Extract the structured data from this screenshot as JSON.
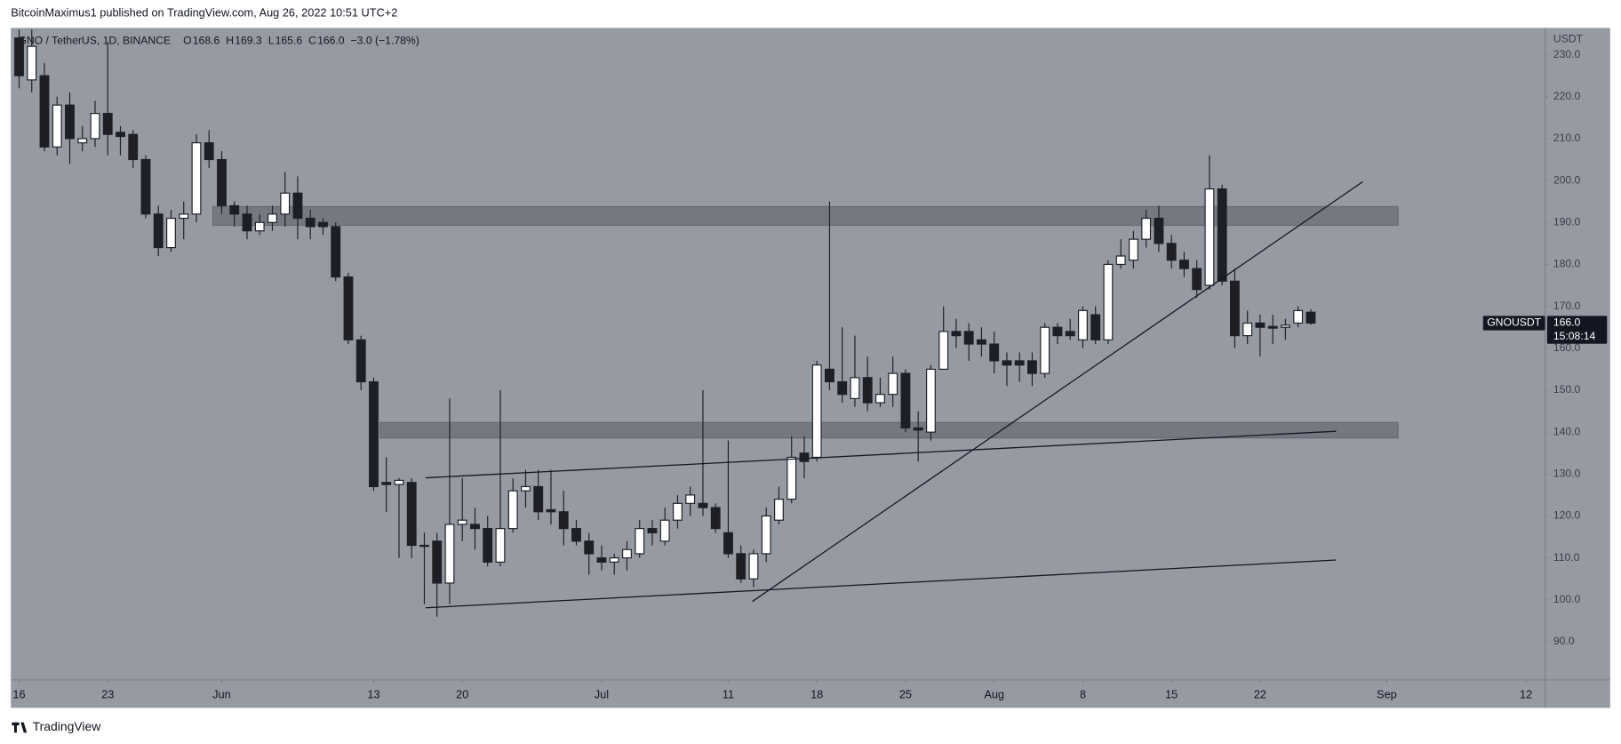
{
  "publisher": "BitcoinMaximus1 published on TradingView.com, Aug 26, 2022 10:51 UTC+2",
  "brand": "TradingView",
  "chart_data": {
    "type": "candlestick",
    "legend": {
      "symbol": "GNO / TetherUS, 1D, BINANCE",
      "o_label": "O",
      "o": "168.6",
      "h_label": "H",
      "h": "169.3",
      "l_label": "L",
      "l": "165.6",
      "c_label": "C",
      "c": "166.0",
      "change": "−3.0 (−1.78%)"
    },
    "y_axis_label": "USDT",
    "last_label": {
      "symbol": "GNOUSDT",
      "price": "166.0",
      "countdown": "15:08:14"
    },
    "up_color": "#ffffff",
    "down_color": "#1e1f25",
    "background": "#959aa3",
    "categories": [
      "May 16",
      "May 17",
      "May 18",
      "May 19",
      "May 20",
      "May 21",
      "May 22",
      "May 23",
      "May 24",
      "May 25",
      "May 26",
      "May 27",
      "May 28",
      "May 29",
      "May 30",
      "May 31",
      "Jun 1",
      "Jun 2",
      "Jun 3",
      "Jun 4",
      "Jun 5",
      "Jun 6",
      "Jun 7",
      "Jun 8",
      "Jun 9",
      "Jun 10",
      "Jun 11",
      "Jun 12",
      "Jun 13",
      "Jun 14",
      "Jun 15",
      "Jun 16",
      "Jun 17",
      "Jun 18",
      "Jun 19",
      "Jun 20",
      "Jun 21",
      "Jun 22",
      "Jun 23",
      "Jun 24",
      "Jun 25",
      "Jun 26",
      "Jun 27",
      "Jun 28",
      "Jun 29",
      "Jun 30",
      "Jul 1",
      "Jul 2",
      "Jul 3",
      "Jul 4",
      "Jul 5",
      "Jul 6",
      "Jul 7",
      "Jul 8",
      "Jul 9",
      "Jul 10",
      "Jul 11",
      "Jul 12",
      "Jul 13",
      "Jul 14",
      "Jul 15",
      "Jul 16",
      "Jul 17",
      "Jul 18",
      "Jul 19",
      "Jul 20",
      "Jul 21",
      "Jul 22",
      "Jul 23",
      "Jul 24",
      "Jul 25",
      "Jul 26",
      "Jul 27",
      "Jul 28",
      "Jul 29",
      "Jul 30",
      "Jul 31",
      "Aug 1",
      "Aug 2",
      "Aug 3",
      "Aug 4",
      "Aug 5",
      "Aug 6",
      "Aug 7",
      "Aug 8",
      "Aug 9",
      "Aug 10",
      "Aug 11",
      "Aug 12",
      "Aug 13",
      "Aug 14",
      "Aug 15",
      "Aug 16",
      "Aug 17",
      "Aug 18",
      "Aug 19",
      "Aug 20",
      "Aug 21",
      "Aug 22",
      "Aug 23",
      "Aug 24",
      "Aug 25",
      "Aug 26"
    ],
    "open": [
      234,
      224,
      225,
      208,
      218,
      209,
      210,
      216,
      211.5,
      211,
      205,
      192,
      184,
      191,
      192,
      209,
      205,
      194,
      192,
      188,
      190,
      192,
      197,
      191,
      190,
      189,
      177,
      162,
      152,
      128,
      127.5,
      128,
      113,
      114,
      104,
      118,
      118,
      117,
      109,
      117,
      126,
      127,
      121.5,
      121,
      117,
      114,
      110,
      109,
      110,
      111,
      117,
      114,
      119,
      123,
      123,
      122,
      116,
      111,
      105,
      111,
      119,
      124,
      135,
      134,
      155,
      152,
      148,
      153,
      147,
      149,
      154,
      141,
      140,
      155,
      164,
      164,
      162,
      161,
      157,
      157,
      157,
      154,
      165,
      164,
      162,
      168,
      162,
      180,
      181,
      186,
      191,
      185,
      181,
      179,
      175,
      198,
      176,
      163,
      166,
      165.2,
      165,
      166,
      168.6
    ],
    "high": [
      236,
      236,
      228,
      220,
      221,
      213,
      219,
      233,
      213,
      212,
      206,
      194,
      193,
      195,
      211,
      212,
      207,
      195,
      194,
      192,
      194,
      202,
      201,
      193,
      191,
      190,
      178,
      163,
      153,
      134,
      129,
      129,
      116,
      116,
      148,
      129,
      122,
      120,
      150,
      129,
      131,
      131,
      131,
      126,
      119,
      116,
      113,
      111,
      114,
      119,
      119,
      122,
      125,
      127,
      150,
      123,
      138,
      113,
      112,
      122,
      127,
      139,
      139,
      157,
      195,
      165,
      163,
      158,
      153,
      158,
      155,
      145,
      156,
      170,
      167,
      166,
      165,
      164,
      159,
      159,
      159,
      166,
      166,
      167,
      170,
      170,
      181,
      186,
      188,
      193,
      194,
      187,
      183,
      181,
      206,
      199,
      179,
      169,
      168,
      168,
      167,
      170,
      169.3
    ],
    "low": [
      222,
      221,
      207,
      206,
      204,
      207,
      208,
      206,
      206,
      203,
      191,
      182,
      183,
      186,
      190,
      203,
      192,
      189,
      186,
      187,
      188,
      189,
      186,
      186,
      187,
      176,
      161,
      150,
      126,
      121,
      110,
      110,
      99,
      96,
      99,
      114,
      112,
      108,
      108,
      116,
      122,
      119,
      118,
      113,
      113,
      106,
      107,
      106,
      107,
      110,
      113,
      113,
      117,
      120,
      120,
      116,
      110,
      104,
      103,
      109,
      118,
      123,
      129,
      133,
      150,
      147,
      146,
      145,
      146,
      146,
      140,
      133,
      138,
      155,
      160,
      157,
      158,
      154,
      151,
      152,
      151,
      153,
      161,
      162,
      160,
      161,
      161,
      179,
      179,
      184,
      183,
      179,
      177,
      172,
      174,
      175,
      160,
      161,
      158,
      161,
      162,
      165,
      165.6
    ],
    "close": [
      225,
      232,
      208,
      218,
      210,
      210,
      216,
      211,
      210.5,
      205,
      192,
      184,
      191,
      192,
      209,
      205,
      194,
      192,
      188,
      190,
      192,
      197,
      191,
      189,
      189,
      177,
      162,
      152,
      127,
      127.5,
      128.5,
      113,
      113,
      104,
      118,
      119,
      117,
      109,
      117,
      126,
      127,
      121,
      121,
      117,
      114,
      111,
      109,
      110,
      112,
      117,
      116,
      119,
      123,
      125,
      122,
      117,
      111,
      105,
      111,
      120,
      124,
      134,
      133,
      156,
      152,
      149,
      153,
      147,
      149,
      154,
      141,
      140.5,
      155,
      164,
      163,
      161,
      161,
      157,
      156,
      156,
      154,
      165,
      163,
      163,
      169,
      162,
      180,
      182,
      186,
      191,
      185,
      181,
      179,
      174,
      198,
      176,
      163,
      166,
      165,
      164.8,
      165.5,
      169,
      166
    ],
    "xlim": [
      -0.65,
      120.5
    ],
    "xticks": [
      {
        "value": 0,
        "label": "16"
      },
      {
        "value": 7,
        "label": "23"
      },
      {
        "value": 16,
        "label": "Jun"
      },
      {
        "value": 28,
        "label": "13"
      },
      {
        "value": 35,
        "label": "20"
      },
      {
        "value": 46,
        "label": "Jul"
      },
      {
        "value": 56,
        "label": "11"
      },
      {
        "value": 63,
        "label": "18"
      },
      {
        "value": 70,
        "label": "25"
      },
      {
        "value": 77,
        "label": "Aug"
      },
      {
        "value": 84,
        "label": "8"
      },
      {
        "value": 91,
        "label": "15"
      },
      {
        "value": 98,
        "label": "22"
      },
      {
        "value": 108,
        "label": "Sep"
      },
      {
        "value": 119,
        "label": "12"
      }
    ],
    "ylim": [
      80.9,
      236.4
    ],
    "yticks": [
      {
        "value": 90,
        "label": "90.0"
      },
      {
        "value": 100,
        "label": "100.0"
      },
      {
        "value": 110,
        "label": "110.0"
      },
      {
        "value": 120,
        "label": "120.0"
      },
      {
        "value": 130,
        "label": "130.0"
      },
      {
        "value": 140,
        "label": "140.0"
      },
      {
        "value": 150,
        "label": "150.0"
      },
      {
        "value": 160,
        "label": "160.0"
      },
      {
        "value": 170,
        "label": "170.0"
      },
      {
        "value": 180,
        "label": "180.0"
      },
      {
        "value": 190,
        "label": "190.0"
      },
      {
        "value": 200,
        "label": "200.0"
      },
      {
        "value": 210,
        "label": "210.0"
      },
      {
        "value": 220,
        "label": "220.0"
      },
      {
        "value": 230,
        "label": "230.0"
      }
    ],
    "grid": false,
    "zones": [
      {
        "x": [
          15.3,
          108.9
        ],
        "y": [
          189.3,
          193.8
        ]
      },
      {
        "x": [
          28.5,
          108.9
        ],
        "y": [
          138.6,
          142.3
        ]
      }
    ],
    "lines": [
      {
        "x": [
          32.1,
          104.0
        ],
        "y": [
          129.1,
          140.2
        ]
      },
      {
        "x": [
          32.1,
          104.0
        ],
        "y": [
          98.1,
          109.5
        ]
      },
      {
        "x": [
          57.9,
          106.1
        ],
        "y": [
          99.6,
          199.7
        ]
      }
    ]
  }
}
